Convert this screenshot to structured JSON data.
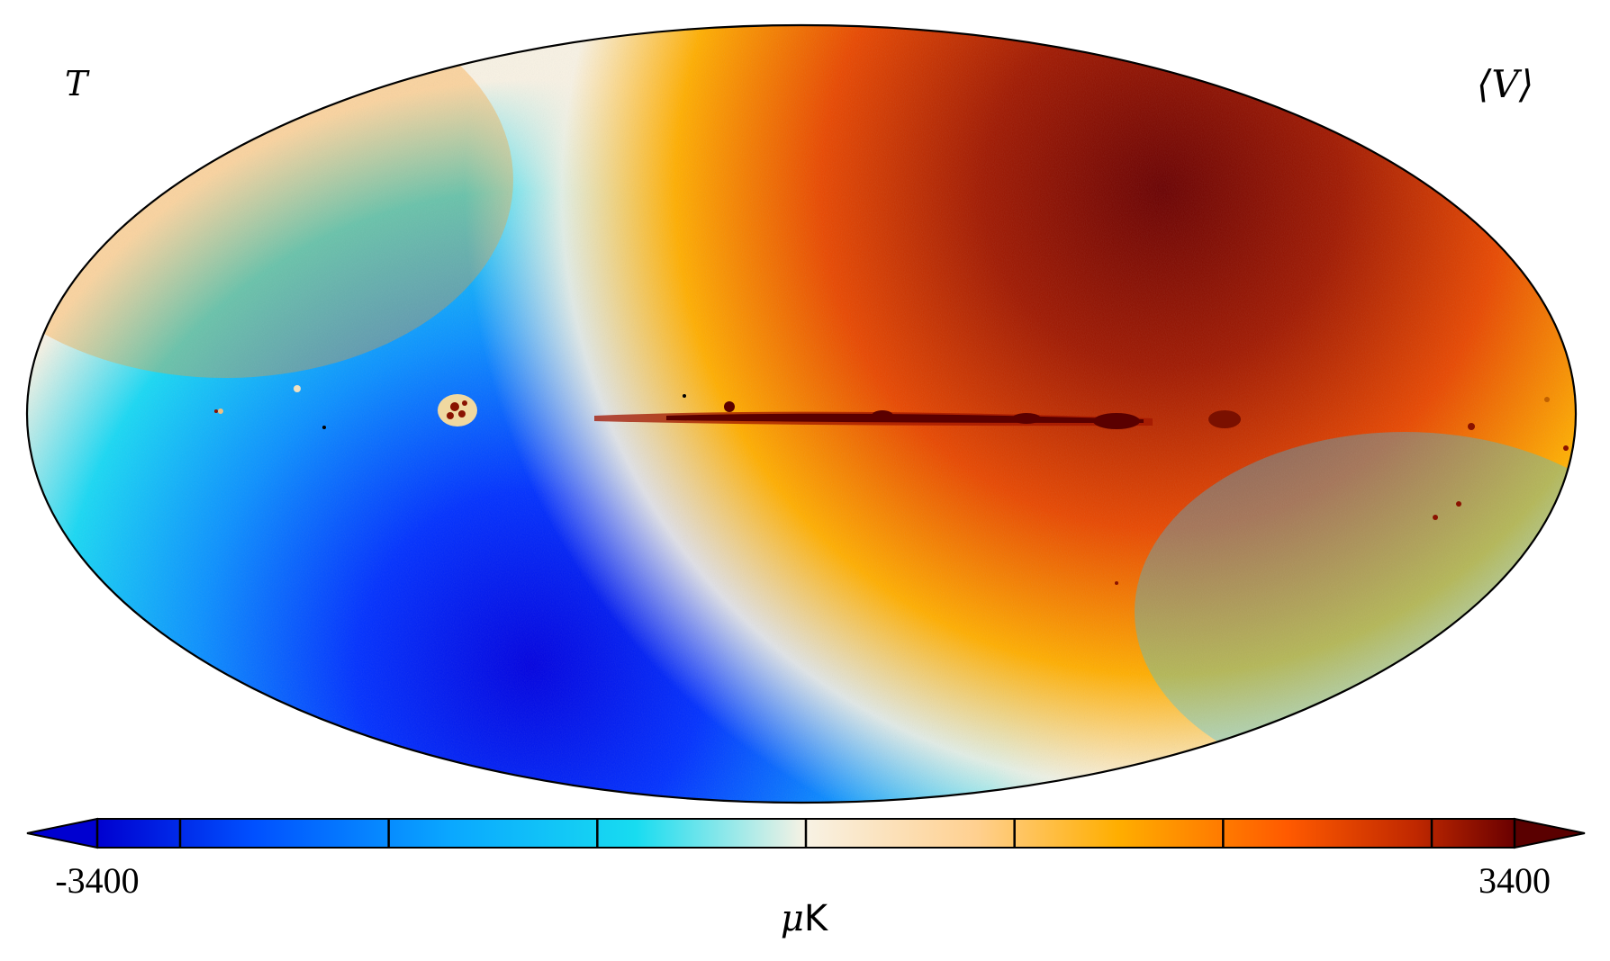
{
  "map": {
    "projection": "mollweide",
    "field_label": "T",
    "dataset_label": "⟨V⟩",
    "features": [
      "dipole",
      "galactic-plane-emission",
      "point-sources"
    ]
  },
  "colorbar": {
    "min_label": "-3400",
    "max_label": "3400",
    "unit_label_mu": "μ",
    "unit_label_k": "K",
    "min_value": -3400,
    "max_value": 3400,
    "tick_count": 7,
    "extend": "both",
    "colors": [
      "#0000d0",
      "#0050ff",
      "#0aa8ff",
      "#18dcf0",
      "#f8f2e4",
      "#ffd090",
      "#ffae00",
      "#ff5a00",
      "#c02800",
      "#6a0000"
    ]
  }
}
